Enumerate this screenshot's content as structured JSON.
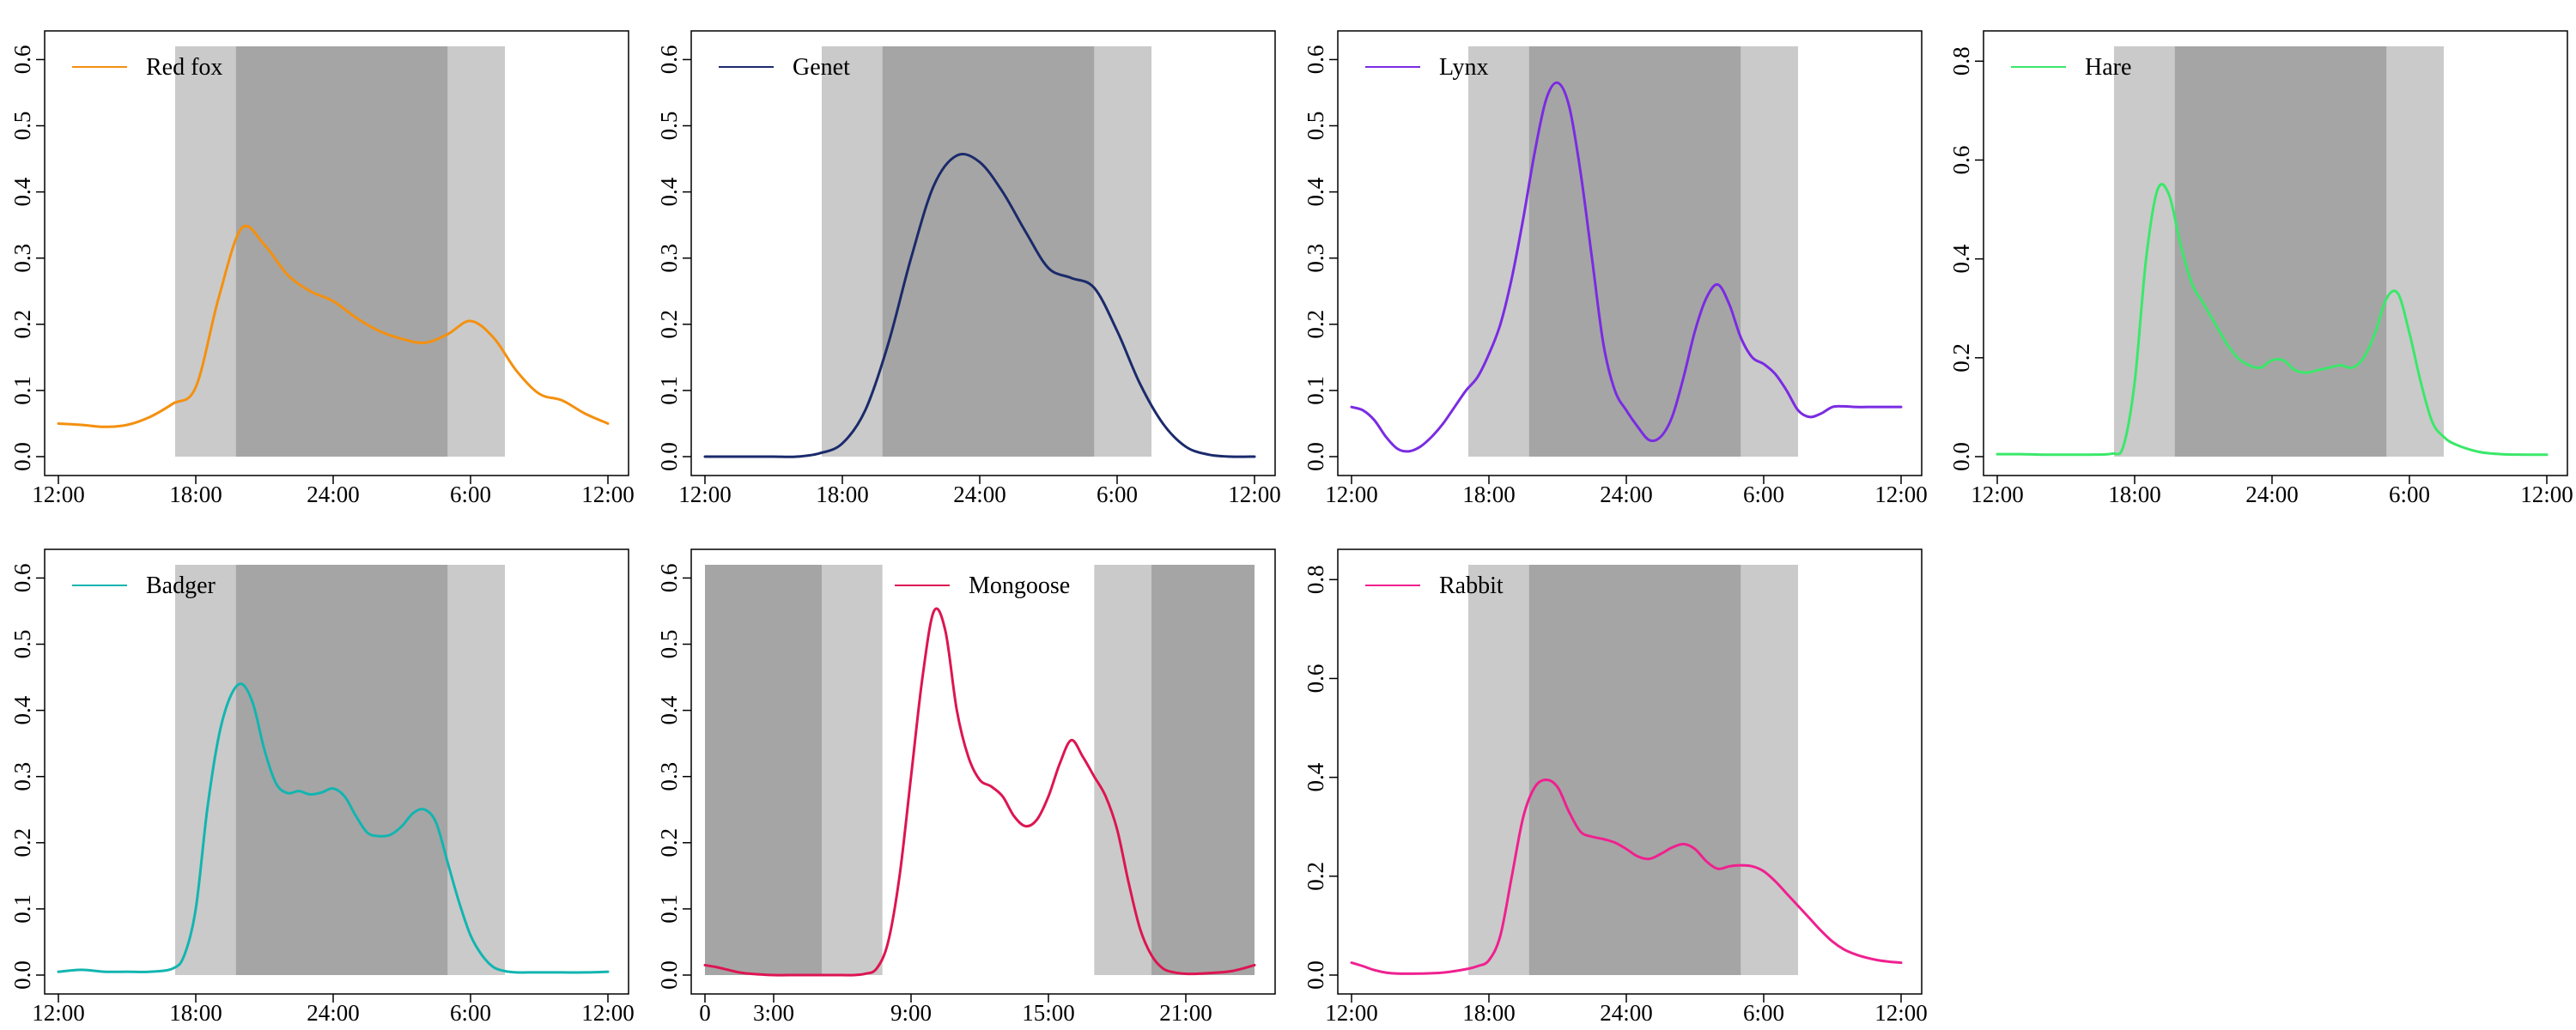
{
  "chart_data": [
    {
      "type": "line",
      "series": [
        {
          "name": "Red fox",
          "color": "#F4900F",
          "x": [
            0,
            1,
            2,
            3,
            4,
            5,
            6,
            7,
            8,
            9,
            10,
            11,
            12,
            13,
            14,
            15,
            16,
            17,
            18,
            19,
            20,
            21,
            22,
            23,
            24
          ],
          "values": [
            0.05,
            0.048,
            0.045,
            0.048,
            0.06,
            0.08,
            0.105,
            0.24,
            0.345,
            0.32,
            0.275,
            0.25,
            0.235,
            0.21,
            0.19,
            0.178,
            0.172,
            0.185,
            0.205,
            0.18,
            0.13,
            0.095,
            0.085,
            0.065,
            0.05
          ]
        }
      ],
      "xticks": [
        0,
        6,
        12,
        18,
        24
      ],
      "xtick_labels": [
        "12:00",
        "18:00",
        "24:00",
        "6:00",
        "12:00"
      ],
      "ylim": [
        0,
        0.62
      ],
      "yticks": [
        0,
        0.1,
        0.2,
        0.3,
        0.4,
        0.5,
        0.6
      ],
      "ytick_labels": [
        "0.0",
        "0.1",
        "0.2",
        "0.3",
        "0.4",
        "0.5",
        "0.6"
      ],
      "bands": {
        "night": [
          7.75,
          17.0
        ],
        "twilight": [
          [
            5.1,
            7.75
          ],
          [
            17.0,
            19.5
          ]
        ]
      },
      "legend_position": "top-left"
    },
    {
      "type": "line",
      "series": [
        {
          "name": "Genet",
          "color": "#1B2A6B",
          "x": [
            0,
            1,
            2,
            3,
            4,
            5,
            6,
            7,
            8,
            9,
            10,
            11,
            12,
            13,
            14,
            15,
            16,
            17,
            18,
            19,
            20,
            21,
            22,
            23,
            24
          ],
          "values": [
            0,
            0,
            0,
            0,
            0,
            0.005,
            0.02,
            0.07,
            0.17,
            0.3,
            0.41,
            0.455,
            0.445,
            0.4,
            0.34,
            0.285,
            0.27,
            0.255,
            0.19,
            0.11,
            0.05,
            0.015,
            0.003,
            0,
            0
          ]
        }
      ],
      "xticks": [
        0,
        6,
        12,
        18,
        24
      ],
      "xtick_labels": [
        "12:00",
        "18:00",
        "24:00",
        "6:00",
        "12:00"
      ],
      "ylim": [
        0,
        0.62
      ],
      "yticks": [
        0,
        0.1,
        0.2,
        0.3,
        0.4,
        0.5,
        0.6
      ],
      "ytick_labels": [
        "0.0",
        "0.1",
        "0.2",
        "0.3",
        "0.4",
        "0.5",
        "0.6"
      ],
      "bands": {
        "night": [
          7.75,
          17.0
        ],
        "twilight": [
          [
            5.1,
            7.75
          ],
          [
            17.0,
            19.5
          ]
        ]
      },
      "legend_position": "top-left"
    },
    {
      "type": "line",
      "series": [
        {
          "name": "Lynx",
          "color": "#7A2BE2",
          "x": [
            0,
            0.5,
            1,
            1.5,
            2,
            2.5,
            3,
            3.5,
            4,
            4.5,
            5,
            5.5,
            6,
            6.5,
            7,
            7.5,
            8,
            8.5,
            9,
            9.5,
            10,
            10.5,
            11,
            11.5,
            12,
            12.5,
            13,
            13.5,
            14,
            14.5,
            15,
            15.5,
            16,
            16.5,
            17,
            17.5,
            18,
            18.5,
            19,
            19.5,
            20,
            20.5,
            21,
            21.5,
            22,
            22.5,
            23,
            23.5,
            24
          ],
          "values": [
            0.075,
            0.07,
            0.055,
            0.03,
            0.012,
            0.008,
            0.015,
            0.03,
            0.05,
            0.075,
            0.1,
            0.12,
            0.155,
            0.2,
            0.27,
            0.36,
            0.46,
            0.54,
            0.565,
            0.53,
            0.43,
            0.3,
            0.17,
            0.1,
            0.07,
            0.045,
            0.025,
            0.03,
            0.06,
            0.12,
            0.19,
            0.24,
            0.26,
            0.23,
            0.18,
            0.15,
            0.14,
            0.125,
            0.1,
            0.07,
            0.06,
            0.065,
            0.075,
            0.076,
            0.075,
            0.075,
            0.075,
            0.075,
            0.075
          ]
        }
      ],
      "xticks": [
        0,
        6,
        12,
        18,
        24
      ],
      "xtick_labels": [
        "12:00",
        "18:00",
        "24:00",
        "6:00",
        "12:00"
      ],
      "ylim": [
        0,
        0.62
      ],
      "yticks": [
        0,
        0.1,
        0.2,
        0.3,
        0.4,
        0.5,
        0.6
      ],
      "ytick_labels": [
        "0.0",
        "0.1",
        "0.2",
        "0.3",
        "0.4",
        "0.5",
        "0.6"
      ],
      "bands": {
        "night": [
          7.75,
          17.0
        ],
        "twilight": [
          [
            5.1,
            7.75
          ],
          [
            17.0,
            19.5
          ]
        ]
      },
      "legend_position": "top-left"
    },
    {
      "type": "line",
      "series": [
        {
          "name": "Hare",
          "color": "#3AE86A",
          "x": [
            0,
            1,
            2,
            3,
            4,
            5,
            5.5,
            6,
            6.5,
            7,
            7.5,
            8,
            8.5,
            9,
            9.5,
            10,
            10.5,
            11,
            11.5,
            12,
            12.5,
            13,
            13.5,
            14,
            14.5,
            15,
            15.5,
            16,
            16.5,
            17,
            17.5,
            18,
            18.5,
            19,
            19.5,
            20,
            21,
            22,
            23,
            24
          ],
          "values": [
            0.005,
            0.005,
            0.004,
            0.004,
            0.004,
            0.006,
            0.02,
            0.15,
            0.4,
            0.54,
            0.53,
            0.43,
            0.35,
            0.31,
            0.27,
            0.23,
            0.2,
            0.185,
            0.18,
            0.195,
            0.195,
            0.175,
            0.17,
            0.175,
            0.18,
            0.185,
            0.18,
            0.2,
            0.25,
            0.32,
            0.33,
            0.25,
            0.15,
            0.07,
            0.04,
            0.025,
            0.01,
            0.005,
            0.004,
            0.004
          ]
        }
      ],
      "xticks": [
        0,
        6,
        12,
        18,
        24
      ],
      "xtick_labels": [
        "12:00",
        "18:00",
        "24:00",
        "6:00",
        "12:00"
      ],
      "ylim": [
        0,
        0.83
      ],
      "yticks": [
        0,
        0.2,
        0.4,
        0.6,
        0.8
      ],
      "ytick_labels": [
        "0.0",
        "0.2",
        "0.4",
        "0.6",
        "0.8"
      ],
      "bands": {
        "night": [
          7.75,
          17.0
        ],
        "twilight": [
          [
            5.1,
            7.75
          ],
          [
            17.0,
            19.5
          ]
        ]
      },
      "legend_position": "top-left"
    },
    {
      "type": "line",
      "series": [
        {
          "name": "Badger",
          "color": "#12B5B0",
          "x": [
            0,
            1,
            2,
            3,
            4,
            5,
            5.5,
            6,
            6.5,
            7,
            7.5,
            8,
            8.5,
            9,
            9.5,
            10,
            10.5,
            11,
            11.5,
            12,
            12.5,
            13,
            13.5,
            14,
            14.5,
            15,
            15.5,
            16,
            16.5,
            17,
            17.5,
            18,
            18.5,
            19,
            19.5,
            20,
            20.5,
            21,
            22,
            23,
            24
          ],
          "values": [
            0.005,
            0.008,
            0.005,
            0.005,
            0.005,
            0.01,
            0.03,
            0.1,
            0.25,
            0.36,
            0.42,
            0.44,
            0.41,
            0.34,
            0.29,
            0.275,
            0.278,
            0.273,
            0.276,
            0.282,
            0.27,
            0.24,
            0.215,
            0.21,
            0.212,
            0.225,
            0.245,
            0.25,
            0.23,
            0.17,
            0.11,
            0.06,
            0.03,
            0.012,
            0.006,
            0.004,
            0.004,
            0.004,
            0.004,
            0.004,
            0.005
          ]
        }
      ],
      "xticks": [
        0,
        6,
        12,
        18,
        24
      ],
      "xtick_labels": [
        "12:00",
        "18:00",
        "24:00",
        "6:00",
        "12:00"
      ],
      "ylim": [
        0,
        0.62
      ],
      "yticks": [
        0,
        0.1,
        0.2,
        0.3,
        0.4,
        0.5,
        0.6
      ],
      "ytick_labels": [
        "0.0",
        "0.1",
        "0.2",
        "0.3",
        "0.4",
        "0.5",
        "0.6"
      ],
      "bands": {
        "night": [
          7.75,
          17.0
        ],
        "twilight": [
          [
            5.1,
            7.75
          ],
          [
            17.0,
            19.5
          ]
        ]
      },
      "legend_position": "top-left"
    },
    {
      "type": "line",
      "series": [
        {
          "name": "Mongoose",
          "color": "#DD1552",
          "x": [
            0,
            0.5,
            1,
            1.5,
            2,
            3,
            4,
            5,
            6,
            6.5,
            7,
            7.5,
            8,
            8.5,
            9,
            9.5,
            10,
            10.5,
            11,
            11.5,
            12,
            12.5,
            13,
            13.5,
            14,
            14.5,
            15,
            15.5,
            16,
            16.5,
            17,
            17.5,
            18,
            18.5,
            19,
            19.5,
            20,
            20.5,
            21,
            21.5,
            22,
            22.5,
            23,
            23.5,
            24
          ],
          "values": [
            0.015,
            0.012,
            0.008,
            0.004,
            0.002,
            0,
            0,
            0,
            0,
            0,
            0.002,
            0.01,
            0.05,
            0.15,
            0.3,
            0.45,
            0.55,
            0.52,
            0.4,
            0.33,
            0.295,
            0.285,
            0.27,
            0.24,
            0.225,
            0.235,
            0.27,
            0.32,
            0.355,
            0.33,
            0.3,
            0.27,
            0.22,
            0.14,
            0.07,
            0.03,
            0.01,
            0.004,
            0.002,
            0.002,
            0.003,
            0.004,
            0.006,
            0.01,
            0.015
          ]
        }
      ],
      "xticks": [
        0,
        3,
        9,
        15,
        21
      ],
      "xtick_labels": [
        "0",
        "3:00",
        "9:00",
        "15:00",
        "21:00"
      ],
      "ylim": [
        0,
        0.62
      ],
      "yticks": [
        0,
        0.1,
        0.2,
        0.3,
        0.4,
        0.5,
        0.6
      ],
      "ytick_labels": [
        "0.0",
        "0.1",
        "0.2",
        "0.3",
        "0.4",
        "0.5",
        "0.6"
      ],
      "bands": {
        "night": [
          [
            0,
            5.1
          ],
          [
            19.5,
            24
          ]
        ],
        "twilight": [
          [
            5.1,
            7.75
          ],
          [
            17.0,
            19.5
          ]
        ]
      },
      "legend_position": "top-center"
    },
    {
      "type": "line",
      "series": [
        {
          "name": "Rabbit",
          "color": "#F0208F",
          "x": [
            0,
            0.5,
            1,
            1.5,
            2,
            3,
            4,
            5,
            5.5,
            6,
            6.5,
            7,
            7.5,
            8,
            8.5,
            9,
            9.5,
            10,
            10.5,
            11,
            11.5,
            12,
            12.5,
            13,
            13.5,
            14,
            14.5,
            15,
            15.5,
            16,
            16.5,
            17,
            17.5,
            18,
            18.5,
            19,
            19.5,
            20,
            20.5,
            21,
            21.5,
            22,
            22.5,
            23,
            23.5,
            24
          ],
          "values": [
            0.025,
            0.018,
            0.01,
            0.005,
            0.003,
            0.003,
            0.005,
            0.012,
            0.018,
            0.03,
            0.08,
            0.2,
            0.32,
            0.38,
            0.395,
            0.38,
            0.33,
            0.29,
            0.28,
            0.275,
            0.268,
            0.255,
            0.24,
            0.235,
            0.245,
            0.258,
            0.265,
            0.255,
            0.23,
            0.215,
            0.22,
            0.222,
            0.22,
            0.21,
            0.19,
            0.165,
            0.14,
            0.115,
            0.09,
            0.068,
            0.052,
            0.042,
            0.035,
            0.03,
            0.027,
            0.025
          ]
        }
      ],
      "xticks": [
        0,
        6,
        12,
        18,
        24
      ],
      "xtick_labels": [
        "12:00",
        "18:00",
        "24:00",
        "6:00",
        "12:00"
      ],
      "ylim": [
        0,
        0.83
      ],
      "yticks": [
        0,
        0.2,
        0.4,
        0.6,
        0.8
      ],
      "ytick_labels": [
        "0.0",
        "0.2",
        "0.4",
        "0.6",
        "0.8"
      ],
      "bands": {
        "night": [
          7.75,
          17.0
        ],
        "twilight": [
          [
            5.1,
            7.75
          ],
          [
            17.0,
            19.5
          ]
        ]
      },
      "legend_position": "top-left"
    }
  ],
  "colors": {
    "night_band": "#A5A5A5",
    "twilight_band": "#CACACA",
    "axis": "#000000"
  }
}
